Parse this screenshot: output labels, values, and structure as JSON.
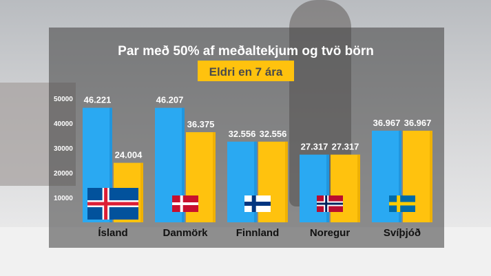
{
  "chart_data": {
    "type": "bar",
    "title": "Par með 50% af meðaltekjum og tvö börn",
    "subtitle": "Eldri en 7 ára",
    "categories": [
      "Ísland",
      "Danmörk",
      "Finnland",
      "Noregur",
      "Svíþjóð"
    ],
    "series": [
      {
        "values": [
          46221,
          46207,
          32556,
          27317,
          36967
        ],
        "labels": [
          "46.221",
          "46.207",
          "32.556",
          "27.317",
          "36.967"
        ],
        "color": "#2aa9f2"
      },
      {
        "values": [
          24004,
          36375,
          32556,
          27317,
          36967
        ],
        "labels": [
          "24.004",
          "36.375",
          "32.556",
          "27.317",
          "36.967"
        ],
        "color": "#ffc20e"
      }
    ],
    "yticks": [
      "10000",
      "20000",
      "30000",
      "40000",
      "50000"
    ],
    "ylim": [
      0,
      50000
    ],
    "flags": [
      "iceland-flag",
      "denmark-flag",
      "finland-flag",
      "norway-flag",
      "sweden-flag"
    ],
    "subtitle_bg": "#ffc20e",
    "grid": false,
    "legend": "none"
  }
}
